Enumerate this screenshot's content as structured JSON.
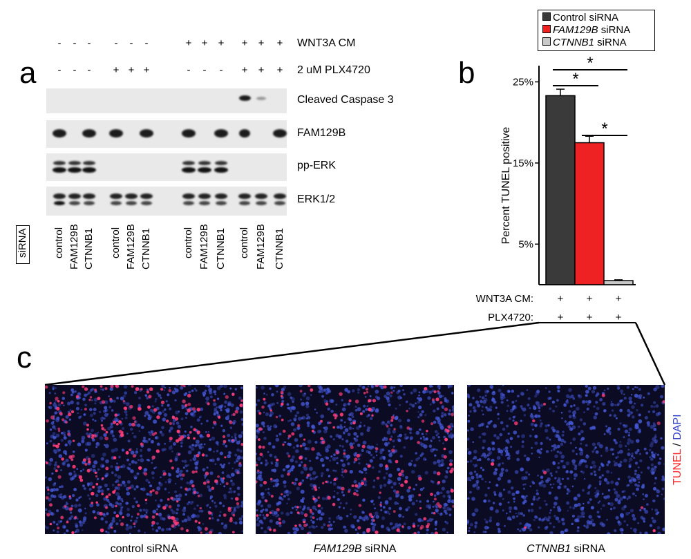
{
  "panel_labels": {
    "a": "a",
    "b": "b",
    "c": "c"
  },
  "blot": {
    "treatment_rows": [
      {
        "label": "WNT3A CM",
        "signs": [
          "-",
          "-",
          "-",
          "-",
          "-",
          "-",
          "+",
          "+",
          "+",
          "+",
          "+",
          "+"
        ]
      },
      {
        "label": "2 uM PLX4720",
        "signs": [
          "-",
          "-",
          "-",
          "+",
          "+",
          "+",
          "-",
          "-",
          "-",
          "+",
          "+",
          "+"
        ]
      }
    ],
    "blots": [
      {
        "label": "Cleaved Caspase 3"
      },
      {
        "label": "FAM129B"
      },
      {
        "label": "pp-ERK"
      },
      {
        "label": "ERK1/2"
      }
    ],
    "sirna_box_label": "siRNA",
    "lane_labels": [
      "control",
      "FAM129B",
      "CTNNB1",
      "control",
      "FAM129B",
      "CTNNB1",
      "control",
      "FAM129B",
      "CTNNB1",
      "control",
      "FAM129B",
      "CTNNB1"
    ]
  },
  "chart_data": {
    "type": "bar",
    "categories": [
      "Control siRNA",
      "FAM129B siRNA",
      "CTNNB1 siRNA"
    ],
    "values": [
      23.3,
      17.5,
      0.5
    ],
    "errors": [
      0.8,
      0.8,
      0.1
    ],
    "colors": [
      "#3a3a3a",
      "#ee2222",
      "#c8c8c8"
    ],
    "ylabel": "Percent TUNEL positive",
    "ylim": [
      0,
      27
    ],
    "yticks": [
      {
        "v": 5,
        "label": "5%"
      },
      {
        "v": 15,
        "label": "15%"
      },
      {
        "v": 25,
        "label": "25%"
      }
    ],
    "legend": [
      {
        "italic": "",
        "text": "Control siRNA"
      },
      {
        "italic": "FAM129B",
        "text": " siRNA"
      },
      {
        "italic": "CTNNB1",
        "text": " siRNA"
      }
    ],
    "legend_position": "top",
    "significance_marker": "*",
    "significance": [
      [
        0,
        1
      ],
      [
        0,
        2
      ],
      [
        1,
        2
      ]
    ],
    "conditions": [
      {
        "label": "WNT3A CM:",
        "signs": [
          "+",
          "+",
          "+"
        ]
      },
      {
        "label": "PLX4720:",
        "signs": [
          "+",
          "+",
          "+"
        ]
      }
    ]
  },
  "micrographs": [
    {
      "caption_italic": "",
      "caption_text": "control siRNA",
      "tunel_fraction": 0.23
    },
    {
      "caption_italic": "FAM129B",
      "caption_text": " siRNA",
      "tunel_fraction": 0.17
    },
    {
      "caption_italic": "CTNNB1",
      "caption_text": " siRNA",
      "tunel_fraction": 0.01
    }
  ],
  "stain_legend": {
    "tunel": "TUNEL",
    "sep": " / ",
    "dapi": "DAPI",
    "tunel_color": "#ff2a2a",
    "dapi_color": "#3344cc"
  }
}
